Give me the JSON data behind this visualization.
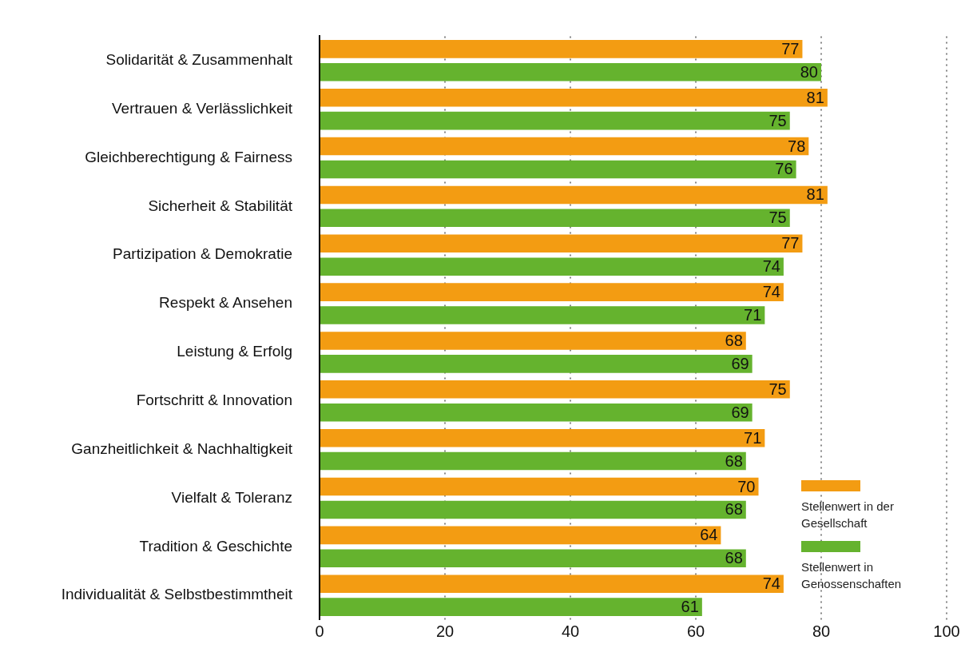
{
  "chart_data": {
    "type": "bar",
    "orientation": "horizontal",
    "categories": [
      "Solidarität & Zusammenhalt",
      "Vertrauen & Verlässlichkeit",
      "Gleichberechtigung & Fairness",
      "Sicherheit & Stabilität",
      "Partizipation & Demokratie",
      "Respekt & Ansehen",
      "Leistung & Erfolg",
      "Fortschritt & Innovation",
      "Ganzheitlichkeit & Nachhaltigkeit",
      "Vielfalt & Toleranz",
      "Tradition & Geschichte",
      "Individualität & Selbstbestimmtheit"
    ],
    "series": [
      {
        "name": "Stellenwert in der Gesellschaft",
        "color": "#f39c12",
        "values": [
          77,
          81,
          78,
          81,
          77,
          74,
          68,
          75,
          71,
          70,
          64,
          74
        ]
      },
      {
        "name": "Stellenwert in Genossenschaften",
        "color": "#65b32e",
        "values": [
          80,
          75,
          76,
          75,
          74,
          71,
          69,
          69,
          68,
          68,
          68,
          61
        ]
      }
    ],
    "xlim": [
      0,
      100
    ],
    "xticks": [
      0,
      20,
      40,
      60,
      80,
      100
    ],
    "grid": "x",
    "legend": "bottom right",
    "data_labels": true
  }
}
